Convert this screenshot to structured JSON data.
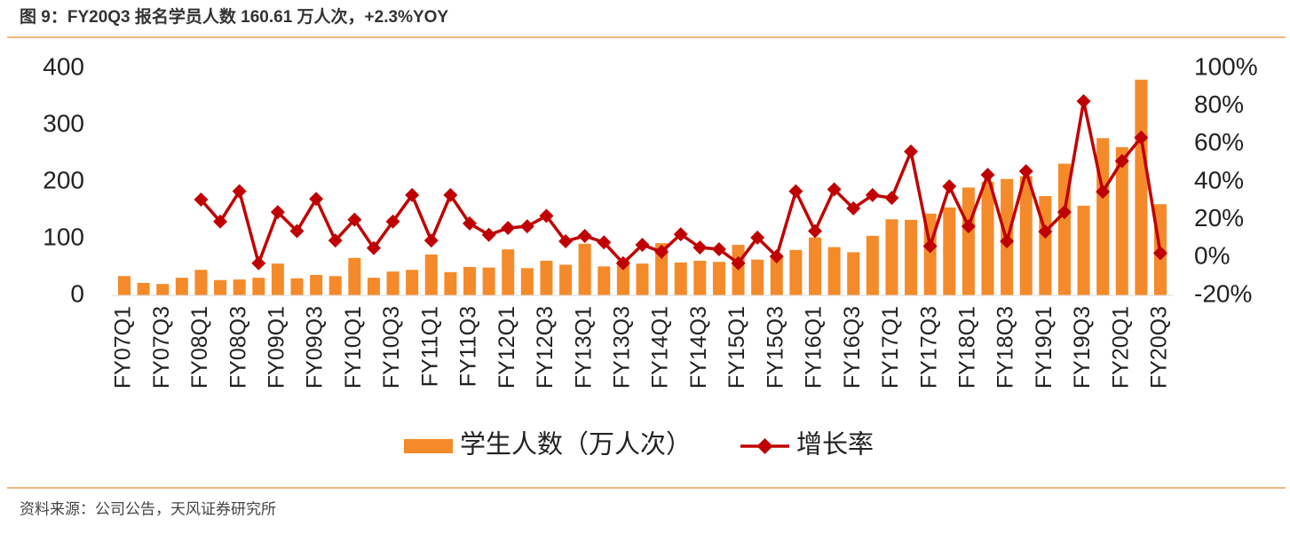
{
  "chart_data": {
    "type": "bar-line",
    "title": "图 9：FY20Q3 报名学员人数 160.61 万人次，+2.3%YOY",
    "source": "资料来源：公司公告，天风证券研究所",
    "categories": [
      "FY07Q1",
      null,
      "FY07Q3",
      null,
      "FY08Q1",
      null,
      "FY08Q3",
      null,
      "FY09Q1",
      null,
      "FY09Q3",
      null,
      "FY10Q1",
      null,
      "FY10Q3",
      null,
      "FY11Q1",
      null,
      "FY11Q3",
      null,
      "FY12Q1",
      null,
      "FY12Q3",
      null,
      "FY13Q1",
      null,
      "FY13Q3",
      null,
      "FY14Q1",
      null,
      "FY14Q3",
      null,
      "FY15Q1",
      null,
      "FY15Q3",
      null,
      "FY16Q1",
      null,
      "FY16Q3",
      null,
      "FY17Q1",
      null,
      "FY17Q3",
      null,
      "FY18Q1",
      null,
      "FY18Q3",
      null,
      "FY19Q1",
      null,
      "FY19Q3",
      null,
      "FY20Q1",
      null,
      "FY20Q3"
    ],
    "series": [
      {
        "name": "学生人数（万人次）",
        "color": "#f58a2a",
        "type": "bar",
        "values": [
          34,
          22,
          20,
          31,
          45,
          27,
          28,
          31,
          56,
          30,
          36,
          34,
          66,
          31,
          42,
          45,
          72,
          41,
          50,
          49,
          81,
          48,
          61,
          54,
          91,
          51,
          61,
          56,
          92,
          58,
          61,
          59,
          89,
          63,
          70,
          80,
          102,
          85,
          76,
          105,
          134,
          133,
          144,
          155,
          190,
          200,
          205,
          210,
          175,
          232,
          158,
          277,
          261,
          380,
          160.61
        ]
      },
      {
        "name": "增长率",
        "color": "#c00000",
        "type": "line",
        "axis": "y2",
        "values": [
          null,
          null,
          null,
          null,
          30.6,
          19,
          35,
          -3,
          24,
          14,
          31,
          9,
          20,
          5,
          19,
          33,
          9,
          33,
          18,
          12,
          15.6,
          16.5,
          22,
          8.6,
          11.4,
          8,
          -3,
          6.7,
          3,
          12.3,
          5.3,
          4.4,
          -3,
          10.5,
          0.6,
          35,
          14,
          36,
          26,
          33,
          31.5,
          56,
          6,
          37.6,
          16.5,
          43.7,
          8.6,
          45.6,
          13.7,
          24,
          82.6,
          34.8,
          51,
          63.4,
          2.3
        ]
      }
    ],
    "ylim": [
      0,
      400
    ],
    "yticks": [
      0,
      100,
      200,
      300,
      400
    ],
    "y2lim": [
      -20,
      100
    ],
    "y2ticks": [
      {
        "value": -20,
        "label": "-20%"
      },
      {
        "value": 0,
        "label": "0%"
      },
      {
        "value": 20,
        "label": "20%"
      },
      {
        "value": 40,
        "label": "40%"
      },
      {
        "value": 60,
        "label": "60%"
      },
      {
        "value": 80,
        "label": "80%"
      },
      {
        "value": 100,
        "label": "100%"
      }
    ]
  }
}
